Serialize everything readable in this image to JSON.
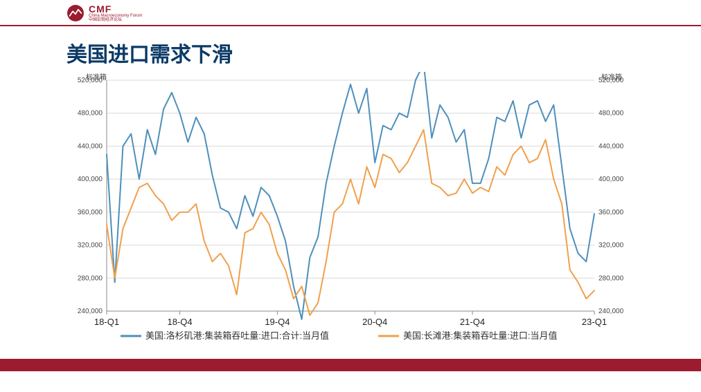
{
  "brand": {
    "acronym": "CMF",
    "sub_en": "China Macroeconomy Forum",
    "sub_cn": "中国宏观经济论坛",
    "brand_color": "#9b1b2f"
  },
  "page": {
    "title": "美国进口需求下滑",
    "title_color": "#0b3a66"
  },
  "chart": {
    "type": "line",
    "y_axis": {
      "unit_left": "标准箱",
      "unit_right": "标准箱",
      "min": 240000,
      "max": 520000,
      "tick_step": 40000,
      "ticks": [
        240000,
        280000,
        320000,
        360000,
        400000,
        440000,
        480000,
        520000
      ],
      "label_fontsize": 10
    },
    "x_axis": {
      "point_count": 61,
      "ticks": [
        {
          "idx": 0,
          "label": "18-Q1"
        },
        {
          "idx": 9,
          "label": "18-Q4"
        },
        {
          "idx": 21,
          "label": "19-Q4"
        },
        {
          "idx": 33,
          "label": "20-Q4"
        },
        {
          "idx": 45,
          "label": "21-Q4"
        },
        {
          "idx": 60,
          "label": "23-Q1"
        }
      ],
      "label_fontsize": 13
    },
    "grid": {
      "color": "#d9d9d9",
      "show": true
    },
    "background_color": "#ffffff",
    "line_width": 2,
    "series": [
      {
        "name": "美国:洛杉矶港:集装箱吞吐量:进口:合计:当月值",
        "color": "#4d8fbb",
        "values": [
          430000,
          275000,
          440000,
          455000,
          400000,
          460000,
          430000,
          485000,
          505000,
          480000,
          445000,
          475000,
          455000,
          405000,
          365000,
          360000,
          340000,
          380000,
          355000,
          390000,
          380000,
          355000,
          325000,
          270000,
          230000,
          305000,
          330000,
          395000,
          440000,
          480000,
          515000,
          480000,
          510000,
          420000,
          465000,
          460000,
          480000,
          475000,
          520000,
          540000,
          450000,
          490000,
          475000,
          445000,
          460000,
          395000,
          395000,
          425000,
          475000,
          470000,
          495000,
          450000,
          490000,
          495000,
          470000,
          490000,
          415000,
          340000,
          310000,
          300000,
          358000
        ]
      },
      {
        "name": "美国:长滩港:集装箱吞吐量:进口:当月值",
        "color": "#f0a04b",
        "values": [
          345000,
          280000,
          340000,
          365000,
          390000,
          395000,
          380000,
          370000,
          350000,
          360000,
          360000,
          370000,
          325000,
          300000,
          310000,
          295000,
          260000,
          335000,
          340000,
          360000,
          345000,
          310000,
          290000,
          255000,
          270000,
          235000,
          250000,
          300000,
          360000,
          370000,
          400000,
          370000,
          415000,
          390000,
          430000,
          425000,
          408000,
          420000,
          440000,
          460000,
          395000,
          390000,
          380000,
          383000,
          400000,
          383000,
          390000,
          385000,
          415000,
          405000,
          430000,
          440000,
          420000,
          425000,
          448000,
          400000,
          370000,
          290000,
          275000,
          255000,
          265000
        ]
      }
    ],
    "legend": {
      "position": "bottom",
      "fontsize": 13
    }
  }
}
